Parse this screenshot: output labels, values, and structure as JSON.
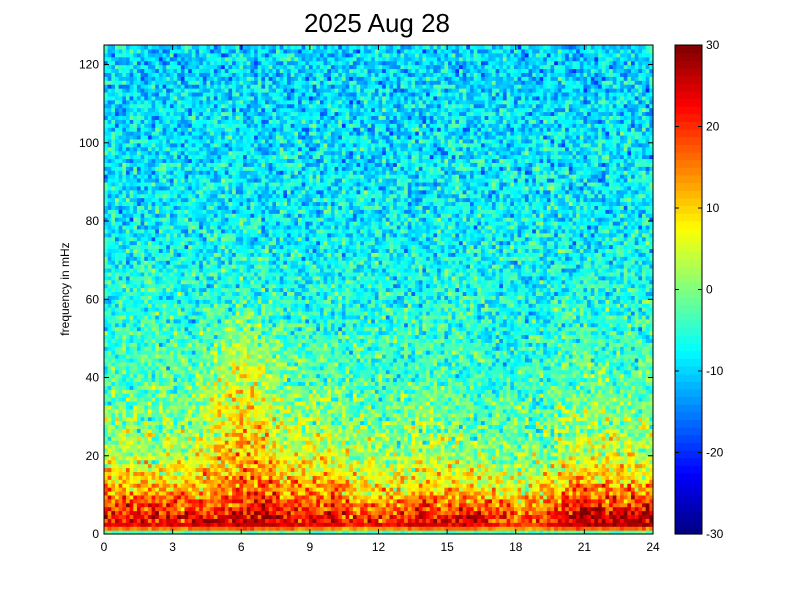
{
  "chart_data": {
    "type": "heatmap",
    "title": "2025 Aug 28",
    "xlabel": "",
    "ylabel": "frequency in mHz",
    "xlim": [
      0,
      24
    ],
    "ylim": [
      0,
      125
    ],
    "x_ticks": [
      0,
      3,
      6,
      9,
      12,
      15,
      18,
      21,
      24
    ],
    "x_tick_labels": [
      "0",
      "3",
      "6",
      "9",
      "12",
      "15",
      "18",
      "21",
      "24"
    ],
    "y_ticks": [
      0,
      20,
      40,
      60,
      80,
      100,
      120
    ],
    "y_tick_labels": [
      "0",
      "20",
      "40",
      "60",
      "80",
      "100",
      "120"
    ],
    "colorbar": {
      "colormap": "jet",
      "clim": [
        -30,
        30
      ],
      "ticks": [
        -30,
        -20,
        -10,
        0,
        10,
        20,
        30
      ],
      "tick_labels": [
        "-30",
        "-20",
        "-10",
        "0",
        "10",
        "20",
        "30"
      ]
    },
    "time_hours": [
      0,
      1,
      2,
      3,
      4,
      5,
      6,
      7,
      8,
      9,
      10,
      11,
      12,
      13,
      14,
      15,
      16,
      17,
      18,
      19,
      20,
      21,
      22,
      23,
      24
    ],
    "frequency_mHz": [
      0,
      2,
      5,
      10,
      15,
      20,
      30,
      40,
      50,
      60,
      80,
      100,
      125
    ],
    "mean_power_profile": [
      [
        -12,
        24,
        22,
        16,
        9,
        3,
        0,
        -4,
        -5,
        -6,
        -8,
        -9,
        -10
      ],
      [
        -12,
        24,
        22,
        14,
        8,
        3,
        0,
        -4,
        -5,
        -6,
        -8,
        -9,
        -10
      ],
      [
        -12,
        24,
        22,
        15,
        8,
        2,
        0,
        -3,
        -4,
        -5,
        -8,
        -9,
        -10
      ],
      [
        -12,
        24,
        23,
        15,
        8,
        3,
        0,
        -3,
        -4,
        -6,
        -8,
        -9,
        -10
      ],
      [
        -12,
        24,
        22,
        14,
        8,
        4,
        1,
        -2,
        -4,
        -6,
        -8,
        -9,
        -10
      ],
      [
        -12,
        25,
        23,
        16,
        12,
        9,
        6,
        2,
        -2,
        -5,
        -8,
        -9,
        -10
      ],
      [
        -12,
        26,
        25,
        19,
        15,
        12,
        10,
        6,
        2,
        -4,
        -8,
        -9,
        -10
      ],
      [
        -12,
        27,
        26,
        20,
        15,
        11,
        6,
        2,
        0,
        -5,
        -8,
        -9,
        -10
      ],
      [
        -12,
        25,
        23,
        15,
        10,
        5,
        2,
        -2,
        -4,
        -6,
        -8,
        -9,
        -10
      ],
      [
        -12,
        24,
        23,
        16,
        11,
        6,
        2,
        -3,
        -5,
        -6,
        -8,
        -9,
        -10
      ],
      [
        -12,
        24,
        22,
        14,
        8,
        3,
        0,
        -3,
        -5,
        -6,
        -8,
        -9,
        -10
      ],
      [
        -12,
        22,
        20,
        11,
        6,
        2,
        0,
        -3,
        -5,
        -6,
        -8,
        -9,
        -10
      ],
      [
        -12,
        22,
        20,
        10,
        5,
        1,
        -2,
        -4,
        -5,
        -6,
        -8,
        -9,
        -10
      ],
      [
        -12,
        24,
        22,
        12,
        7,
        2,
        -1,
        -4,
        -5,
        -6,
        -8,
        -9,
        -10
      ],
      [
        -12,
        25,
        24,
        14,
        8,
        3,
        0,
        -3,
        -5,
        -6,
        -8,
        -9,
        -10
      ],
      [
        -12,
        24,
        22,
        12,
        7,
        2,
        -2,
        -4,
        -5,
        -6,
        -8,
        -9,
        -10
      ],
      [
        -12,
        25,
        23,
        12,
        7,
        2,
        -2,
        -4,
        -5,
        -6,
        -8,
        -9,
        -10
      ],
      [
        -12,
        22,
        20,
        10,
        5,
        0,
        -3,
        -5,
        -6,
        -7,
        -8,
        -9,
        -10
      ],
      [
        -12,
        20,
        18,
        8,
        3,
        -1,
        -3,
        -5,
        -6,
        -7,
        -8,
        -9,
        -10
      ],
      [
        -12,
        20,
        18,
        9,
        4,
        0,
        -3,
        -5,
        -6,
        -7,
        -8,
        -9,
        -10
      ],
      [
        -12,
        26,
        24,
        14,
        8,
        3,
        0,
        -3,
        -5,
        -6,
        -8,
        -9,
        -10
      ],
      [
        -12,
        28,
        26,
        18,
        11,
        5,
        1,
        -2,
        -4,
        -6,
        -8,
        -9,
        -10
      ],
      [
        -12,
        28,
        26,
        16,
        10,
        5,
        1,
        -2,
        -4,
        -6,
        -8,
        -9,
        -10
      ],
      [
        -12,
        27,
        25,
        15,
        9,
        4,
        0,
        -3,
        -5,
        -6,
        -8,
        -9,
        -10
      ],
      [
        -12,
        26,
        24,
        14,
        8,
        3,
        0,
        -3,
        -5,
        -6,
        -8,
        -9,
        -10
      ]
    ]
  }
}
